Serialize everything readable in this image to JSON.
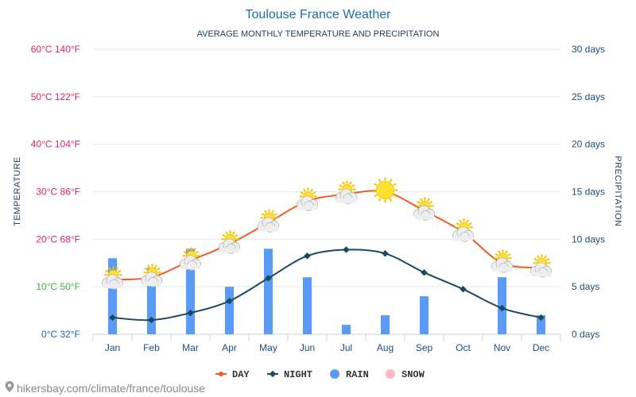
{
  "chart_data": {
    "type": "bar",
    "title": "Toulouse France Weather",
    "subtitle": "AVERAGE MONTHLY TEMPERATURE AND PRECIPITATION",
    "ylabel_left": "TEMPERATURE",
    "ylabel_right": "PRECIPITATION",
    "categories": [
      "Jan",
      "Feb",
      "Mar",
      "Apr",
      "May",
      "Jun",
      "Jul",
      "Aug",
      "Sep",
      "Oct",
      "Nov",
      "Dec"
    ],
    "left_axis": {
      "range": [
        0,
        60
      ],
      "ticks": [
        {
          "value": 60,
          "label": "60°C 140°F",
          "color": "#e0245e"
        },
        {
          "value": 50,
          "label": "50°C 122°F",
          "color": "#e0245e"
        },
        {
          "value": 40,
          "label": "40°C 104°F",
          "color": "#e0245e"
        },
        {
          "value": 30,
          "label": "30°C 86°F",
          "color": "#e0245e"
        },
        {
          "value": 20,
          "label": "20°C 68°F",
          "color": "#e0245e"
        },
        {
          "value": 10,
          "label": "10°C 50°F",
          "color": "#3fb43f"
        },
        {
          "value": 0,
          "label": "0°C 32°F",
          "color": "#1f5fbf"
        }
      ]
    },
    "right_axis": {
      "range": [
        0,
        30
      ],
      "ticks": [
        {
          "value": 30,
          "label": "30 days"
        },
        {
          "value": 25,
          "label": "25 days"
        },
        {
          "value": 20,
          "label": "20 days"
        },
        {
          "value": 15,
          "label": "15 days"
        },
        {
          "value": 10,
          "label": "10 days"
        },
        {
          "value": 5,
          "label": "5 days"
        },
        {
          "value": 0,
          "label": "0 days"
        }
      ]
    },
    "series": [
      {
        "name": "DAY",
        "type": "line",
        "axis": "left",
        "color": "#f05a28",
        "values": [
          11.5,
          12,
          15.5,
          19,
          23.5,
          28,
          29.5,
          30,
          26,
          21.5,
          15,
          14
        ]
      },
      {
        "name": "NIGHT",
        "type": "line",
        "axis": "left",
        "color": "#1b4a5e",
        "values": [
          3.5,
          3,
          4.5,
          7,
          11.8,
          16.5,
          17.8,
          17,
          13,
          9.5,
          5.5,
          3.5
        ]
      },
      {
        "name": "RAIN",
        "type": "bar",
        "axis": "right",
        "color": "#5b9bf8",
        "values": [
          8,
          7,
          9,
          5,
          9,
          6,
          1,
          2,
          4,
          0,
          6,
          2
        ]
      },
      {
        "name": "SNOW",
        "type": "bar",
        "axis": "right",
        "color": "#ffb6c8",
        "values": [
          0,
          0,
          0,
          0,
          0,
          0,
          0,
          0,
          0,
          0,
          0,
          0
        ]
      }
    ],
    "weather_icons": [
      "partly-cloudy-icon",
      "partly-cloudy-icon",
      "partly-cloudy-icon",
      "partly-cloudy-icon",
      "partly-cloudy-icon",
      "partly-cloudy-icon",
      "partly-cloudy-icon",
      "sun-icon",
      "partly-cloudy-icon",
      "partly-cloudy-icon",
      "partly-cloudy-icon",
      "partly-cloudy-icon"
    ],
    "legend": {
      "placement": "bottom",
      "items": [
        {
          "label": "DAY",
          "marker": "line",
          "color": "#f05a28"
        },
        {
          "label": "NIGHT",
          "marker": "line",
          "color": "#1b4a5e"
        },
        {
          "label": "RAIN",
          "marker": "circle",
          "color": "#5b9bf8"
        },
        {
          "label": "SNOW",
          "marker": "circle",
          "color": "#ffb6c8"
        }
      ]
    },
    "grid": true,
    "source": "hikersbay.com/climate/france/toulouse"
  }
}
